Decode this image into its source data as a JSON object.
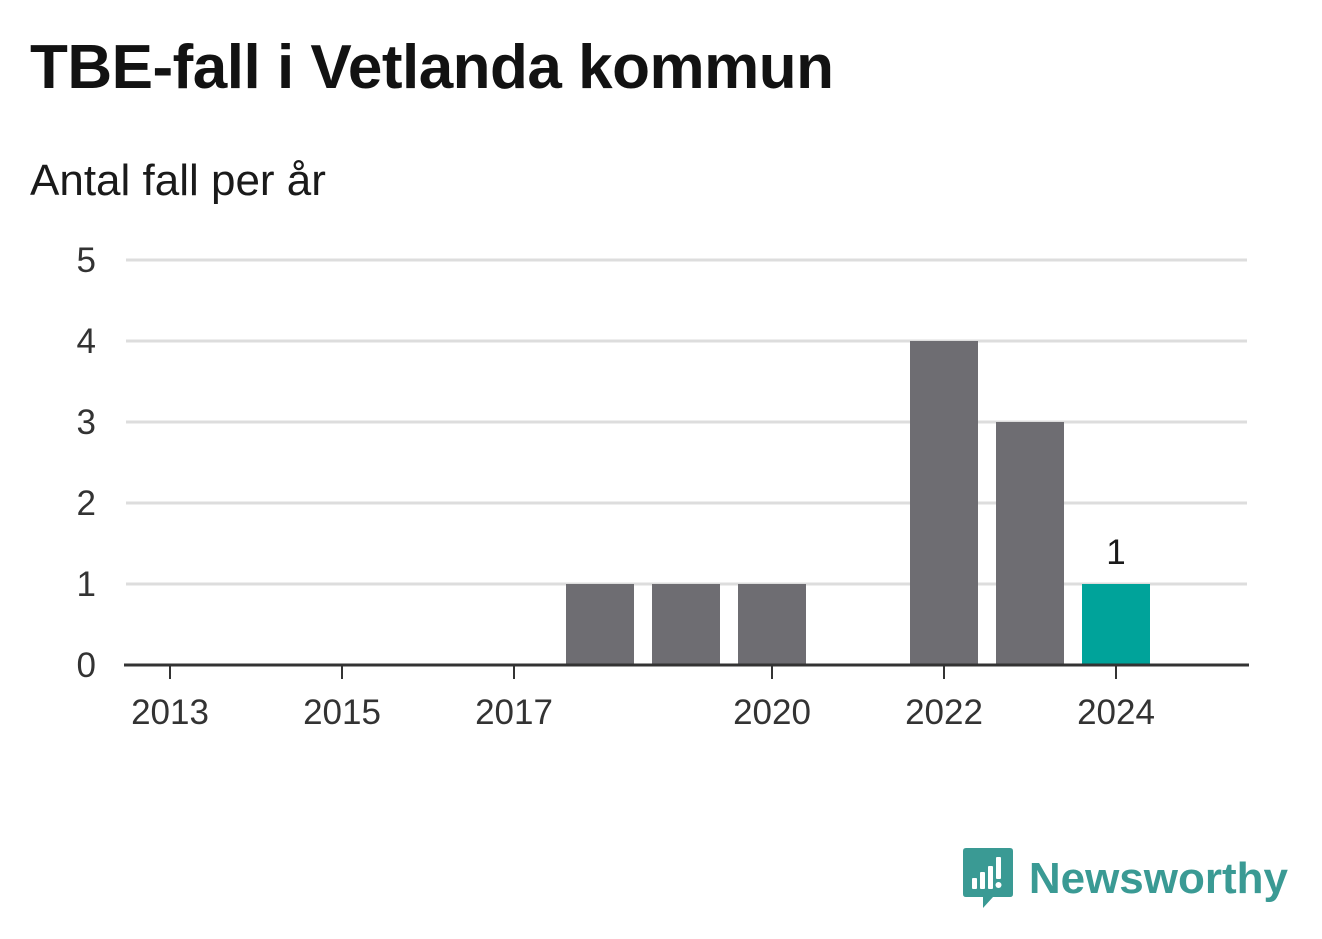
{
  "title": "TBE-fall i Vetlanda kommun",
  "subtitle": "Antal fall per år",
  "brand": {
    "name": "Newsworthy",
    "icon": "newsworthy-logo-icon",
    "color": "#3a9a94"
  },
  "colors": {
    "bar": "#6e6d72",
    "highlight": "#00a39a",
    "grid": "#dddddd",
    "baseline": "#333333"
  },
  "chart_data": {
    "type": "bar",
    "title": "TBE-fall i Vetlanda kommun",
    "subtitle": "Antal fall per år",
    "xlabel": "",
    "ylabel": "",
    "categories": [
      "2013",
      "2014",
      "2015",
      "2016",
      "2017",
      "2018",
      "2019",
      "2020",
      "2021",
      "2022",
      "2023",
      "2024"
    ],
    "x_tick_labels": [
      "2013",
      "2015",
      "2017",
      "2020",
      "2022",
      "2024"
    ],
    "values": [
      0,
      0,
      0,
      0,
      0,
      1,
      1,
      1,
      0,
      4,
      3,
      1
    ],
    "highlight_category": "2024",
    "data_labels": [
      {
        "category": "2024",
        "text": "1"
      }
    ],
    "ylim": [
      0,
      5
    ],
    "yticks": [
      0,
      1,
      2,
      3,
      4,
      5
    ],
    "grid": true,
    "legend": "none"
  }
}
